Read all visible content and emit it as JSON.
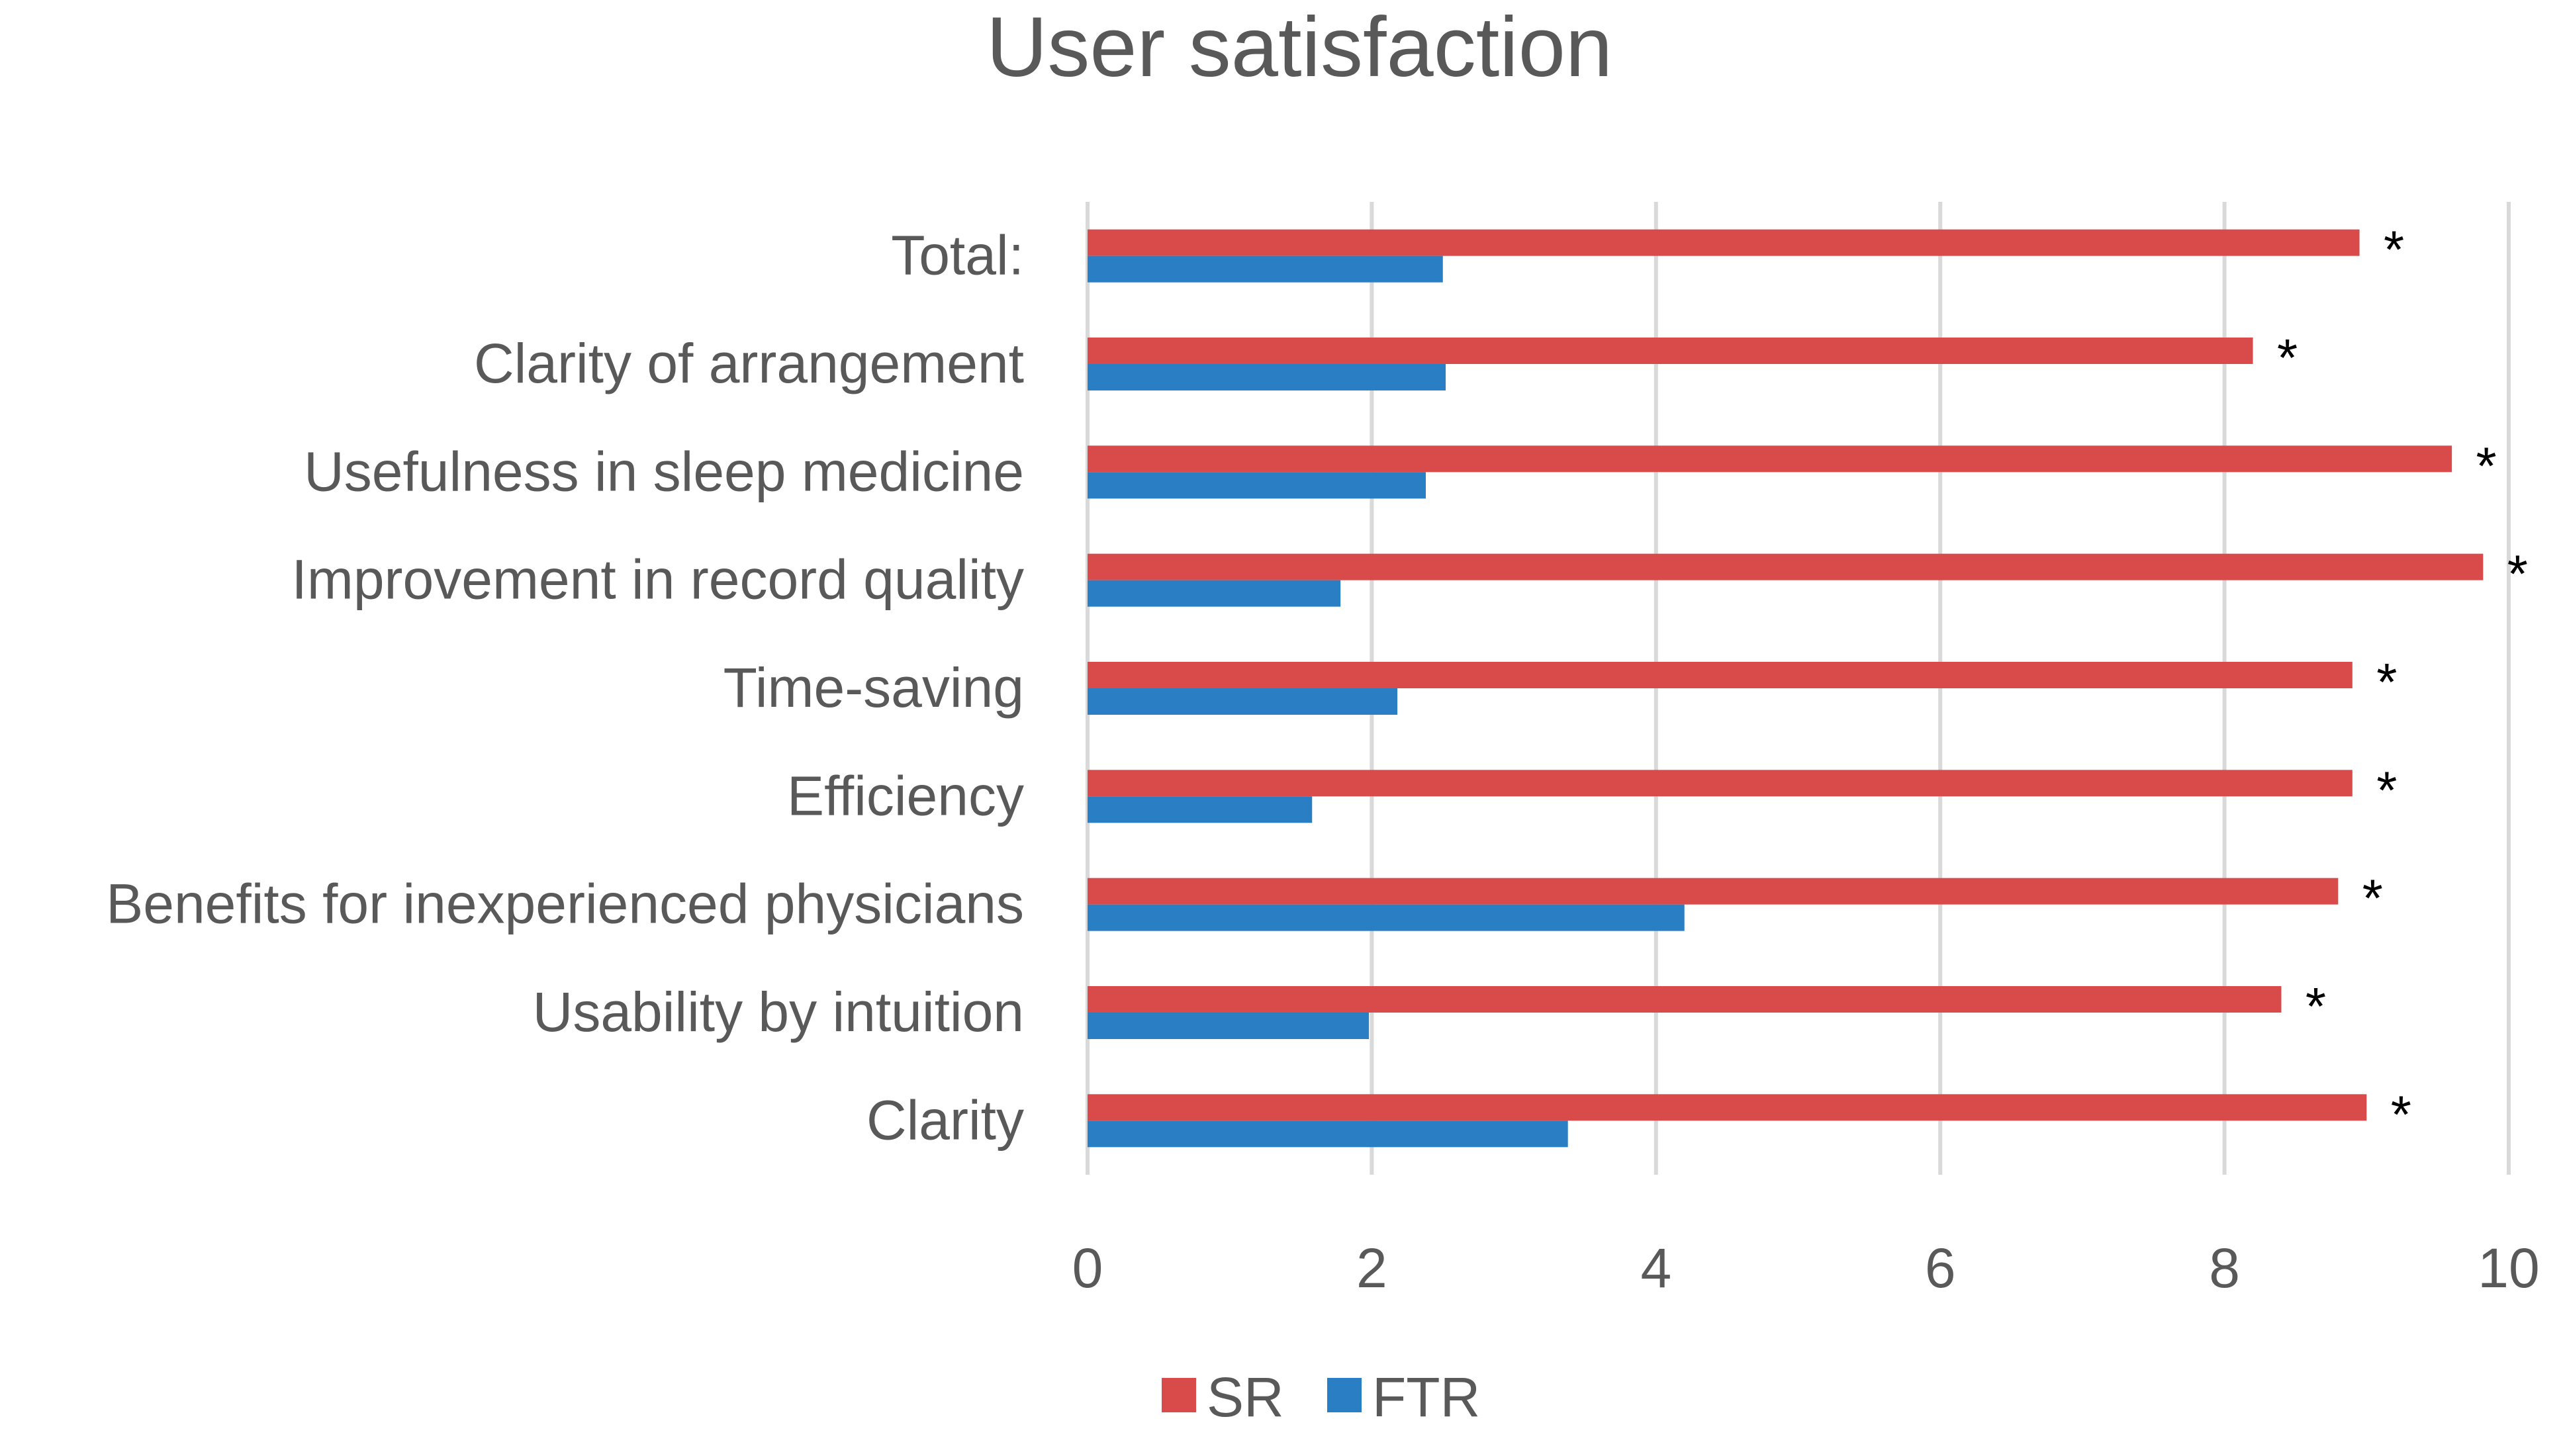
{
  "chart_data": {
    "type": "bar",
    "orientation": "horizontal",
    "title": "User satisfaction",
    "xlabel": "",
    "ylabel": "",
    "categories": [
      "Total:",
      "Clarity of arrangement",
      "Usefulness in sleep medicine",
      "Improvement in record quality",
      "Time-saving",
      "Efficiency",
      "Benefits for inexperienced physicians",
      "Usability by intuition",
      "Clarity"
    ],
    "series": [
      {
        "name": "SR",
        "color": "#d94b4b",
        "values": [
          8.95,
          8.2,
          9.6,
          9.82,
          8.9,
          8.9,
          8.8,
          8.4,
          9.0
        ]
      },
      {
        "name": "FTR",
        "color": "#2a7fc4",
        "values": [
          2.5,
          2.52,
          2.38,
          1.78,
          2.18,
          1.58,
          4.2,
          1.98,
          3.38
        ]
      }
    ],
    "annotations": [
      "*",
      "*",
      "*",
      "*",
      "*",
      "*",
      "*",
      "*",
      "*"
    ],
    "xlim": [
      0,
      10
    ],
    "xticks": [
      "0",
      "2",
      "4",
      "6",
      "8",
      "10"
    ],
    "grid": true,
    "legend_position": "bottom",
    "colors": {
      "gridline": "#d9d9d9",
      "text": "#595959",
      "annotation": "#000000"
    }
  }
}
